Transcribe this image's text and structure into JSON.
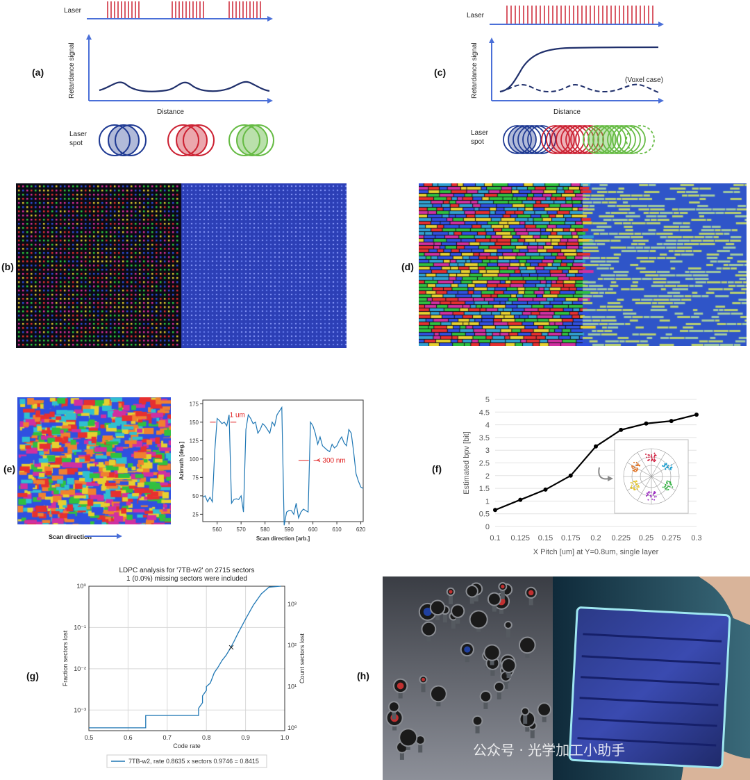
{
  "labels": {
    "a": "(a)",
    "b": "(b)",
    "c": "(c)",
    "d": "(d)",
    "e": "(e)",
    "f": "(f)",
    "g": "(g)",
    "h": "(h)"
  },
  "panel_a": {
    "laser": "Laser",
    "signal": "Retardance signal",
    "distance": "Distance",
    "spot_line1": "Laser",
    "spot_line2": "spot"
  },
  "panel_c": {
    "laser": "Laser",
    "signal": "Retardance signal",
    "distance": "Distance",
    "voxel": "(Voxel case)",
    "spot_line1": "Laser",
    "spot_line2": "spot"
  },
  "panel_e": {
    "scan_direction": "Scan direction",
    "annotation_1um": "1 um",
    "annotation_300nm": "< 300 nm"
  },
  "panel_h": {
    "watermark": "公众号 · 光学加工小助手"
  },
  "colors": {
    "red": "#cc2233",
    "blue": "#1f3a93",
    "green": "#66bb44",
    "mosaic_blue": "#2b3fb8",
    "line": "#1f77b4",
    "arrow": "#4a6fd8"
  },
  "chart_data": [
    {
      "type": "line",
      "panel": "e",
      "xlabel": "Scan direction [arb.]",
      "ylabel": "Azimuth [deg.]",
      "xticks": [
        "560",
        "570",
        "580",
        "590",
        "600",
        "610",
        "620"
      ],
      "yticks": [
        "25",
        "50",
        "75",
        "100",
        "125",
        "150",
        "175"
      ],
      "xlim": [
        554,
        621
      ],
      "ylim": [
        15,
        180
      ],
      "x": [
        554,
        555,
        556,
        557,
        558,
        559,
        560,
        561,
        562,
        563,
        564,
        565,
        566,
        567,
        568,
        569,
        570,
        571,
        572,
        573,
        574,
        575,
        576,
        577,
        578,
        579,
        580,
        581,
        582,
        583,
        584,
        585,
        586,
        587,
        588,
        589,
        590,
        591,
        592,
        593,
        594,
        595,
        596,
        597,
        598,
        599,
        600,
        601,
        602,
        603,
        604,
        605,
        606,
        607,
        608,
        609,
        610,
        611,
        612,
        613,
        614,
        615,
        616,
        617,
        618,
        619,
        620,
        621
      ],
      "y": [
        48,
        50,
        42,
        48,
        42,
        110,
        155,
        152,
        148,
        150,
        145,
        160,
        40,
        45,
        46,
        45,
        50,
        28,
        140,
        160,
        155,
        148,
        150,
        135,
        140,
        148,
        145,
        140,
        135,
        150,
        145,
        160,
        165,
        170,
        10,
        28,
        30,
        30,
        25,
        40,
        20,
        28,
        32,
        30,
        28,
        150,
        145,
        135,
        120,
        130,
        118,
        115,
        112,
        110,
        120,
        115,
        118,
        125,
        130,
        122,
        118,
        140,
        135,
        110,
        80,
        70,
        62,
        60
      ],
      "grid": false
    },
    {
      "type": "line",
      "panel": "f",
      "xlabel": "X Pitch [um] at Y=0.8um, single layer",
      "ylabel": "Estimated bpv [bit]",
      "categories": [
        "0.1",
        "0.125",
        "0.15",
        "0.175",
        "0.2",
        "0.225",
        "0.25",
        "0.275",
        "0.3"
      ],
      "values": [
        0.65,
        1.05,
        1.45,
        2.0,
        3.15,
        3.8,
        4.05,
        4.15,
        4.4
      ],
      "ylim": [
        0,
        5
      ],
      "yticks": [
        "0",
        "0.5",
        "1",
        "1.5",
        "2",
        "2.5",
        "3",
        "3.5",
        "4",
        "4.5",
        "5"
      ],
      "grid": true
    },
    {
      "type": "line",
      "panel": "g",
      "title_line1": "LDPC analysis for '7TB-w2' on 2715 sectors",
      "title_line2": "1 (0.0%) missing sectors were included",
      "xlabel": "Code rate",
      "ylabel": "Fraction sectors lost",
      "ylabel_right": "Count sectors lost",
      "xticks": [
        "0.5",
        "0.6",
        "0.7",
        "0.8",
        "0.9",
        "1.0"
      ],
      "yticks": [
        "10⁻³",
        "10⁻²",
        "10⁻¹",
        "10⁰"
      ],
      "yticks_right": [
        "10⁰",
        "10¹",
        "10²",
        "10³"
      ],
      "xlim": [
        0.5,
        1.0
      ],
      "log_y": true,
      "legend": "7TB-w2, rate 0.8635 x sectors 0.9746 = 0.8415",
      "legend_position": "bottom-center",
      "x": [
        0.5,
        0.645,
        0.645,
        0.78,
        0.78,
        0.79,
        0.79,
        0.8,
        0.8,
        0.81,
        0.815,
        0.82,
        0.83,
        0.84,
        0.85,
        0.86,
        0.87,
        0.88,
        0.9,
        0.92,
        0.94,
        0.96,
        0.99
      ],
      "y": [
        0.00037,
        0.00037,
        0.00074,
        0.00074,
        0.0011,
        0.0015,
        0.0022,
        0.003,
        0.0037,
        0.0045,
        0.006,
        0.008,
        0.011,
        0.016,
        0.021,
        0.03,
        0.045,
        0.07,
        0.16,
        0.35,
        0.65,
        0.95,
        1.0
      ],
      "marker": {
        "x": 0.8635,
        "y": 0.033
      },
      "grid": true
    }
  ]
}
